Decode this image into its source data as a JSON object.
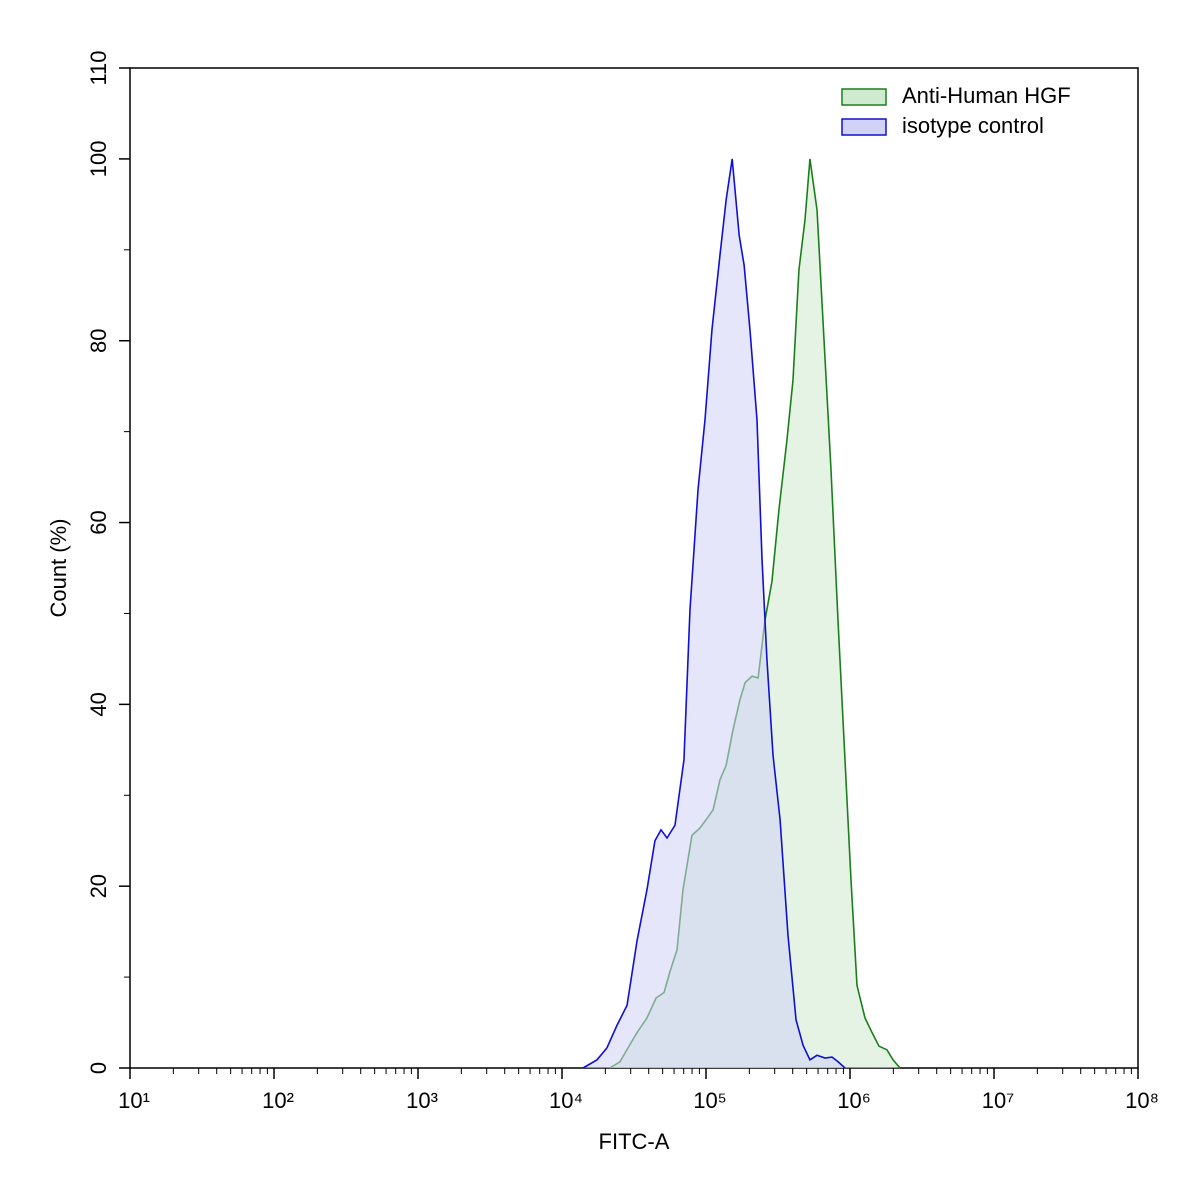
{
  "chart_data": {
    "type": "area",
    "xlabel": "FITC-A",
    "ylabel": "Count  (%)",
    "xscale": "log",
    "xlim": [
      10,
      100000000
    ],
    "xticks": [
      {
        "value": 10,
        "label": "10¹"
      },
      {
        "value": 100,
        "label": "10²"
      },
      {
        "value": 1000,
        "label": "10³"
      },
      {
        "value": 10000,
        "label": "10⁴"
      },
      {
        "value": 100000,
        "label": "10⁵"
      },
      {
        "value": 1000000,
        "label": "10⁶"
      },
      {
        "value": 10000000,
        "label": "10⁷"
      },
      {
        "value": 100000000,
        "label": "10⁸"
      }
    ],
    "ylim": [
      0,
      110
    ],
    "yticks": [
      0,
      20,
      40,
      60,
      80,
      100,
      110
    ],
    "legend": "upper right",
    "series": [
      {
        "name": "Anti-Human HGF",
        "color": "#1a7f1a",
        "fill": "#cfeacf",
        "x": [
          21500,
          25300,
          28700,
          33200,
          38900,
          45000,
          51100,
          56200,
          62900,
          69200,
          79900,
          90900,
          100000,
          112000,
          125000,
          138000,
          154000,
          172000,
          187000,
          209000,
          230000,
          257000,
          287000,
          321000,
          365000,
          402000,
          442000,
          487000,
          527000,
          590000,
          660000,
          738000,
          825000,
          923000,
          1016000,
          1118000,
          1271000,
          1422000,
          1590000,
          1807000,
          1989000,
          2224000
        ],
        "values": [
          0,
          0.7,
          2.2,
          3.9,
          5.5,
          7.7,
          8.3,
          10.6,
          13,
          19.6,
          25.6,
          26.4,
          27.3,
          28.4,
          31.7,
          33.3,
          37.2,
          40.5,
          42.4,
          43.1,
          42.9,
          49.3,
          53.5,
          61.4,
          69.1,
          75.7,
          87.8,
          93.3,
          100,
          94.4,
          80.1,
          65.8,
          49.3,
          33.9,
          20.7,
          9.1,
          5.5,
          3.9,
          2.4,
          2,
          0.9,
          0
        ]
      },
      {
        "name": "isotype control",
        "color": "#1010d0",
        "fill": "#d2d2f6",
        "x": [
          14000,
          17500,
          20500,
          24100,
          28300,
          33200,
          38900,
          44200,
          48700,
          53600,
          60900,
          70300,
          77400,
          88000,
          98400,
          110000,
          125000,
          138000,
          152000,
          170000,
          184000,
          202000,
          226000,
          245000,
          265000,
          292000,
          327000,
          371000,
          422000,
          472000,
          527000,
          590000,
          671000,
          750000,
          825000,
          923000
        ],
        "values": [
          0,
          0.9,
          2.2,
          4.7,
          6.9,
          14,
          19.6,
          25,
          26.2,
          25.3,
          26.7,
          33.9,
          50.4,
          63.6,
          71.3,
          81.2,
          89.4,
          95.5,
          100,
          91.6,
          88.3,
          81.2,
          71.3,
          55.9,
          44.9,
          34.4,
          27.3,
          14.6,
          5.3,
          2.5,
          0.9,
          1.4,
          1.1,
          1.2,
          0.7,
          0
        ]
      }
    ]
  }
}
